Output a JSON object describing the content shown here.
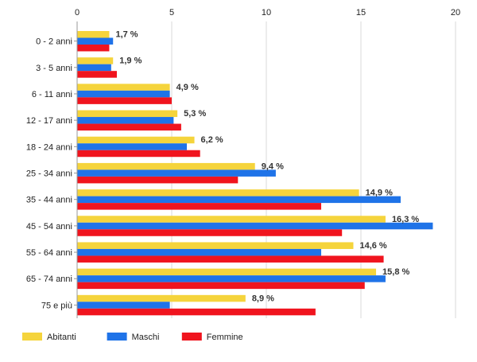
{
  "chart_data": {
    "type": "bar",
    "orientation": "horizontal",
    "categories": [
      "0 - 2 anni",
      "3 - 5 anni",
      "6 - 11 anni",
      "12 - 17 anni",
      "18 - 24 anni",
      "25 - 34 anni",
      "35 - 44 anni",
      "45 - 54 anni",
      "55 - 64 anni",
      "65 - 74 anni",
      "75 e più"
    ],
    "series": [
      {
        "name": "Abitanti",
        "color": "#f5d43c",
        "values": [
          1.7,
          1.9,
          4.9,
          5.3,
          6.2,
          9.4,
          14.9,
          16.3,
          14.6,
          15.8,
          8.9
        ]
      },
      {
        "name": "Maschi",
        "color": "#1f73e8",
        "values": [
          1.9,
          1.8,
          4.9,
          5.1,
          5.8,
          10.5,
          17.1,
          18.8,
          12.9,
          16.3,
          4.9
        ]
      },
      {
        "name": "Femmine",
        "color": "#f0141e",
        "values": [
          1.7,
          2.1,
          5.0,
          5.5,
          6.5,
          8.5,
          12.9,
          14.0,
          16.2,
          15.2,
          12.6
        ]
      }
    ],
    "data_labels": [
      "1,7 %",
      "1,9 %",
      "4,9 %",
      "5,3 %",
      "6,2 %",
      "9,4 %",
      "14,9 %",
      "16,3 %",
      "14,6 %",
      "15,8 %",
      "8,9 %"
    ],
    "xlim": [
      0,
      20
    ],
    "xticks": [
      0,
      5,
      10,
      15,
      20
    ],
    "axis_position": "top",
    "grid": true,
    "legend_position": "bottom-left"
  }
}
